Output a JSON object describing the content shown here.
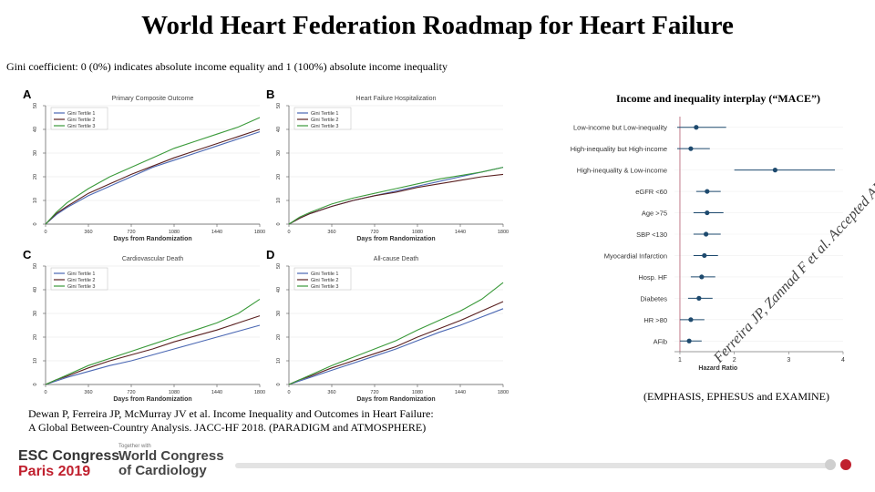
{
  "title": "World Heart Federation Roadmap for Heart Failure",
  "subtitle": "Gini coefficient: 0 (0%) indicates absolute income equality and 1 (100%) absolute income inequality",
  "citation": [
    "Dewan P, Ferreira JP, McMurray JV et al. Income Inequality and Outcomes in Heart Failure:",
    "A Global Between-Country Analysis. JACC-HF 2018. (PARADIGM and ATMOSPHERE)"
  ],
  "watermark": "Ferreira JP, Zannad F et al. Accepted AHJ",
  "footer": {
    "esc_line1": "ESC Congress",
    "esc_line2": "Paris 2019",
    "wcc_small": "Together with",
    "wcc_line1": "World Congress",
    "wcc_line2": "of Cardiology"
  },
  "colors": {
    "tertile1": "#4a67b3",
    "tertile2": "#5a2020",
    "tertile3": "#3a9a3a",
    "forest": "#1e4a6e",
    "refline": "#c07a8a"
  },
  "chart_data": [
    {
      "type": "line",
      "panel": "A",
      "title": "Primary Composite Outcome",
      "xlabel": "Days from Randomization",
      "x_ticks": [
        0,
        360,
        720,
        1080,
        1440,
        1800
      ],
      "y_ticks": [
        0,
        10,
        20,
        30,
        40,
        50
      ],
      "xlim": [
        0,
        1800
      ],
      "ylim": [
        0,
        50
      ],
      "legend_position": "top-left",
      "series": [
        {
          "name": "Gini Tertile 1",
          "x": [
            0,
            90,
            180,
            360,
            540,
            720,
            900,
            1080,
            1260,
            1440,
            1620,
            1800
          ],
          "values": [
            0,
            4,
            7,
            12,
            16,
            20,
            24,
            27,
            30,
            33,
            36,
            39
          ]
        },
        {
          "name": "Gini Tertile 2",
          "x": [
            0,
            90,
            180,
            360,
            540,
            720,
            900,
            1080,
            1260,
            1440,
            1620,
            1800
          ],
          "values": [
            0,
            4.5,
            7.5,
            13,
            17,
            21,
            24.5,
            28,
            31,
            34,
            37,
            40
          ]
        },
        {
          "name": "Gini Tertile 3",
          "x": [
            0,
            90,
            180,
            360,
            540,
            720,
            900,
            1080,
            1260,
            1440,
            1620,
            1800
          ],
          "values": [
            0,
            5,
            9,
            15,
            20,
            24,
            28,
            32,
            35,
            38,
            41,
            45
          ]
        }
      ]
    },
    {
      "type": "line",
      "panel": "B",
      "title": "Heart Failure Hospitalization",
      "xlabel": "Days from Randomization",
      "x_ticks": [
        0,
        360,
        720,
        1080,
        1440,
        1800
      ],
      "y_ticks": [
        0,
        10,
        20,
        30,
        40,
        50
      ],
      "xlim": [
        0,
        1800
      ],
      "ylim": [
        0,
        50
      ],
      "legend_position": "top-left",
      "series": [
        {
          "name": "Gini Tertile 1",
          "x": [
            0,
            90,
            180,
            360,
            540,
            720,
            900,
            1080,
            1260,
            1440,
            1620,
            1800
          ],
          "values": [
            0,
            2.5,
            4.5,
            7.5,
            10,
            12,
            14,
            16,
            18,
            20,
            22,
            24
          ]
        },
        {
          "name": "Gini Tertile 2",
          "x": [
            0,
            90,
            180,
            360,
            540,
            720,
            900,
            1080,
            1260,
            1440,
            1620,
            1800
          ],
          "values": [
            0,
            2.5,
            4.5,
            7.5,
            10,
            12,
            13.5,
            15.5,
            17,
            18.5,
            20,
            21
          ]
        },
        {
          "name": "Gini Tertile 3",
          "x": [
            0,
            90,
            180,
            360,
            540,
            720,
            900,
            1080,
            1260,
            1440,
            1620,
            1800
          ],
          "values": [
            0,
            3,
            5,
            8.5,
            11,
            13,
            15,
            17,
            19,
            20.5,
            22,
            24
          ]
        }
      ]
    },
    {
      "type": "line",
      "panel": "C",
      "title": "Cardiovascular Death",
      "xlabel": "Days from Randomization",
      "x_ticks": [
        0,
        360,
        720,
        1080,
        1440,
        1800
      ],
      "y_ticks": [
        0,
        10,
        20,
        30,
        40,
        50
      ],
      "xlim": [
        0,
        1800
      ],
      "ylim": [
        0,
        50
      ],
      "legend_position": "top-left",
      "series": [
        {
          "name": "Gini Tertile 1",
          "x": [
            0,
            90,
            180,
            360,
            540,
            720,
            900,
            1080,
            1260,
            1440,
            1620,
            1800
          ],
          "values": [
            0,
            1.5,
            3,
            5.5,
            8,
            10,
            12.5,
            15,
            17.5,
            20,
            22.5,
            25
          ]
        },
        {
          "name": "Gini Tertile 2",
          "x": [
            0,
            90,
            180,
            360,
            540,
            720,
            900,
            1080,
            1260,
            1440,
            1620,
            1800
          ],
          "values": [
            0,
            2,
            3.5,
            7,
            10,
            12.5,
            15,
            18,
            20.5,
            23,
            26,
            29
          ]
        },
        {
          "name": "Gini Tertile 3",
          "x": [
            0,
            90,
            180,
            360,
            540,
            720,
            900,
            1080,
            1260,
            1440,
            1620,
            1800
          ],
          "values": [
            0,
            2,
            4,
            8,
            11,
            14,
            17,
            20,
            23,
            26,
            30,
            36
          ]
        }
      ]
    },
    {
      "type": "line",
      "panel": "D",
      "title": "All-cause Death",
      "xlabel": "Days from Randomization",
      "x_ticks": [
        0,
        360,
        720,
        1080,
        1440,
        1800
      ],
      "y_ticks": [
        0,
        10,
        20,
        30,
        40,
        50
      ],
      "xlim": [
        0,
        1800
      ],
      "ylim": [
        0,
        50
      ],
      "legend_position": "top-left",
      "series": [
        {
          "name": "Gini Tertile 1",
          "x": [
            0,
            90,
            180,
            360,
            540,
            720,
            900,
            1080,
            1260,
            1440,
            1620,
            1800
          ],
          "values": [
            0,
            1.5,
            3,
            6,
            9,
            12,
            15,
            18.5,
            22,
            25,
            28.5,
            32
          ]
        },
        {
          "name": "Gini Tertile 2",
          "x": [
            0,
            90,
            180,
            360,
            540,
            720,
            900,
            1080,
            1260,
            1440,
            1620,
            1800
          ],
          "values": [
            0,
            2,
            3.5,
            7,
            10,
            13,
            16,
            20,
            23.5,
            27,
            31,
            35
          ]
        },
        {
          "name": "Gini Tertile 3",
          "x": [
            0,
            90,
            180,
            360,
            540,
            720,
            900,
            1080,
            1260,
            1440,
            1620,
            1800
          ],
          "values": [
            0,
            2,
            4,
            8,
            11.5,
            15,
            18.5,
            23,
            27,
            31,
            36,
            43
          ]
        }
      ]
    },
    {
      "type": "scatter",
      "panel": "forest",
      "title": "Income and inequality interplay (“MACE”)",
      "xlabel": "Hazard Ratio",
      "x_ticks": [
        1,
        2,
        3,
        4
      ],
      "xlim": [
        0.9,
        4
      ],
      "reference_line": 1,
      "rows": [
        {
          "label": "Low-income but Low-inequality",
          "hr": 1.3,
          "lo": 0.95,
          "hi": 1.85
        },
        {
          "label": "High-inequality but High-income",
          "hr": 1.2,
          "lo": 0.95,
          "hi": 1.55
        },
        {
          "label": "High-inequality & Low-income",
          "hr": 2.75,
          "lo": 2.0,
          "hi": 3.85
        },
        {
          "label": "eGFR <60",
          "hr": 1.5,
          "lo": 1.3,
          "hi": 1.75
        },
        {
          "label": "Age >75",
          "hr": 1.5,
          "lo": 1.25,
          "hi": 1.8
        },
        {
          "label": "SBP <130",
          "hr": 1.48,
          "lo": 1.25,
          "hi": 1.75
        },
        {
          "label": "Myocardial Infarction",
          "hr": 1.45,
          "lo": 1.25,
          "hi": 1.7
        },
        {
          "label": "Hosp. HF",
          "hr": 1.4,
          "lo": 1.2,
          "hi": 1.65
        },
        {
          "label": "Diabetes",
          "hr": 1.35,
          "lo": 1.15,
          "hi": 1.6
        },
        {
          "label": "HR >80",
          "hr": 1.2,
          "lo": 1.0,
          "hi": 1.45
        },
        {
          "label": "AFib",
          "hr": 1.17,
          "lo": 1.0,
          "hi": 1.4
        }
      ],
      "note": "(EMPHASIS, EPHESUS and EXAMINE)"
    }
  ]
}
